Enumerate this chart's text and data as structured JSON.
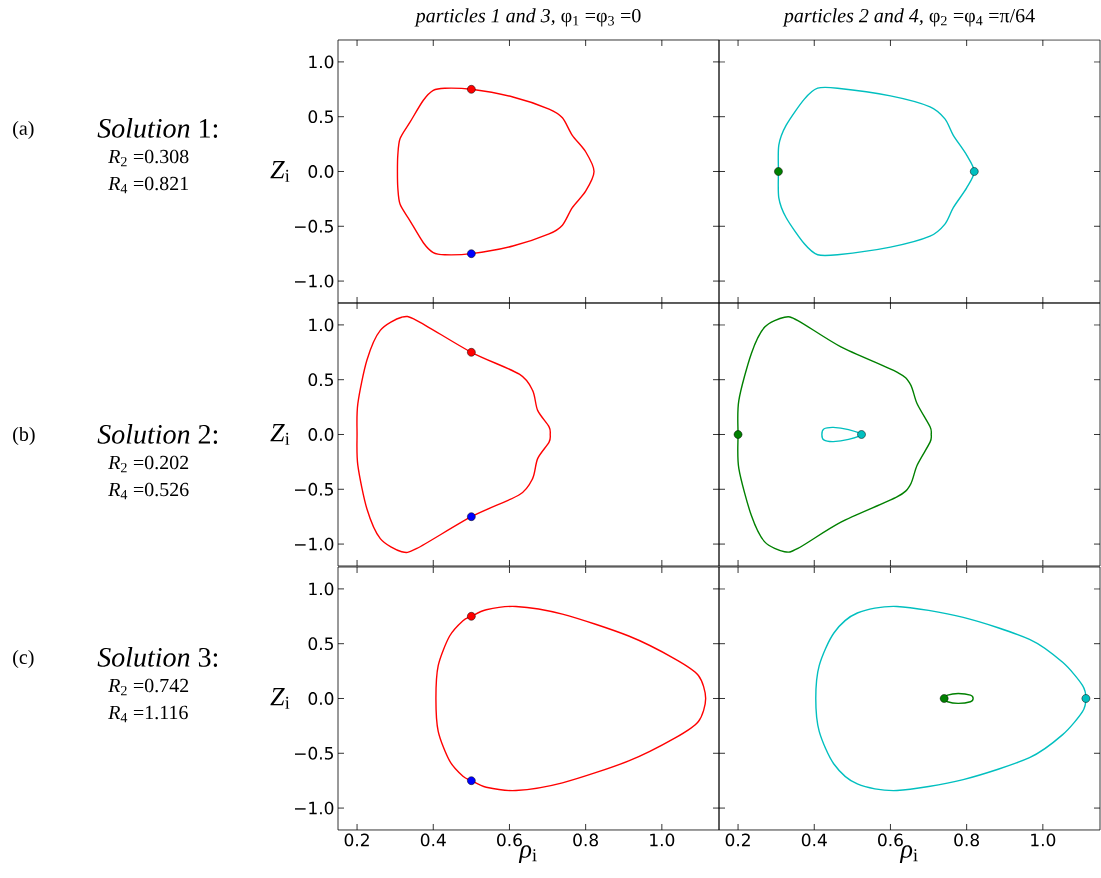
{
  "chart_data": [
    {
      "type": "scatter",
      "title": "*particles 1 and 3,* φ$_{1}$ =φ$_{3}$ =0",
      "ylabel": "*Z*$_{i}$",
      "annotations": [
        "(a)",
        "*Solution* 1:",
        "*R*$_{2}$ =0.308",
        "*R*$_{4}$ =0.821"
      ],
      "xlim": [
        0.15,
        1.15
      ],
      "ylim": [
        -1.2,
        1.2
      ],
      "xticks": [
        0.2,
        0.4,
        0.6,
        0.8,
        1.0
      ],
      "yticks": [
        {
          "value": -1.0,
          "label": "−1.0"
        },
        {
          "value": -0.5,
          "label": "−0.5"
        },
        {
          "value": 0.0,
          "label": "0.0"
        },
        {
          "value": 0.5,
          "label": "0.5"
        },
        {
          "value": 1.0,
          "label": "1.0"
        }
      ],
      "tick_labels": "y",
      "series": [
        {
          "type": "scatter",
          "color": "#ff0000",
          "x": [
            0.5
          ],
          "values": [
            0.75
          ]
        },
        {
          "type": "scatter",
          "color": "#0000ff",
          "x": [
            0.5
          ],
          "values": [
            -0.75
          ]
        }
      ]
    },
    {
      "type": "scatter",
      "title": "*particles 2 and 4,* φ$_{2}$ =φ$_{4}$ =π/64",
      "xlim": [
        0.15,
        1.15
      ],
      "ylim": [
        -1.2,
        1.2
      ],
      "xticks": [
        0.2,
        0.4,
        0.6,
        0.8,
        1.0
      ],
      "yticks": [
        -1.0,
        -0.5,
        0.0,
        0.5,
        1.0
      ],
      "tick_labels": false,
      "series": [
        {
          "type": "scatter",
          "color": "#008000",
          "x": [
            0.306
          ],
          "values": [
            0
          ]
        },
        {
          "type": "scatter",
          "color": "#00bfbf",
          "x": [
            0.82
          ],
          "values": [
            0
          ]
        }
      ]
    },
    {
      "type": "scatter",
      "ylabel": "*Z*$_{i}$",
      "annotations": [
        "(b)",
        "*Solution* 2:",
        "*R*$_{2}$ =0.202",
        "*R*$_{4}$ =0.526"
      ],
      "xlim": [
        0.15,
        1.15
      ],
      "ylim": [
        -1.2,
        1.2
      ],
      "xticks": [
        0.2,
        0.4,
        0.6,
        0.8,
        1.0
      ],
      "yticks": [
        {
          "value": -1.0,
          "label": "−1.0"
        },
        {
          "value": -0.5,
          "label": "−0.5"
        },
        {
          "value": 0.0,
          "label": "0.0"
        },
        {
          "value": 0.5,
          "label": "0.5"
        },
        {
          "value": 1.0,
          "label": "1.0"
        }
      ],
      "tick_labels": "y",
      "series": [
        {
          "type": "scatter",
          "color": "#ff0000",
          "x": [
            0.5
          ],
          "values": [
            0.75
          ]
        },
        {
          "type": "scatter",
          "color": "#0000ff",
          "x": [
            0.5
          ],
          "values": [
            -0.75
          ]
        }
      ]
    },
    {
      "type": "scatter",
      "xlim": [
        0.15,
        1.15
      ],
      "ylim": [
        -1.2,
        1.2
      ],
      "xticks": [
        0.2,
        0.4,
        0.6,
        0.8,
        1.0
      ],
      "yticks": [
        -1.0,
        -0.5,
        0.0,
        0.5,
        1.0
      ],
      "tick_labels": false,
      "series": [
        {
          "type": "scatter",
          "color": "#008000",
          "x": [
            0.2
          ],
          "values": [
            0
          ]
        },
        {
          "type": "scatter",
          "color": "#00bfbf",
          "x": [
            0.524
          ],
          "values": [
            0
          ]
        }
      ]
    },
    {
      "type": "scatter",
      "xlabel": "*ρ*$_{i}$",
      "ylabel": "*Z*$_{i}$",
      "annotations": [
        "(c)",
        "*Solution* 3:",
        "*R*$_{2}$ =0.742",
        "*R*$_{4}$ =1.116"
      ],
      "xlim": [
        0.15,
        1.15
      ],
      "ylim": [
        -1.2,
        1.2
      ],
      "xticks": [
        {
          "value": 0.2,
          "label": "0.2"
        },
        {
          "value": 0.4,
          "label": "0.4"
        },
        {
          "value": 0.6,
          "label": "0.6"
        },
        {
          "value": 0.8,
          "label": "0.8"
        },
        {
          "value": 1.0,
          "label": "1.0"
        }
      ],
      "yticks": [
        {
          "value": -1.0,
          "label": "−1.0"
        },
        {
          "value": -0.5,
          "label": "−0.5"
        },
        {
          "value": 0.0,
          "label": "0.0"
        },
        {
          "value": 0.5,
          "label": "0.5"
        },
        {
          "value": 1.0,
          "label": "1.0"
        }
      ],
      "series": [
        {
          "type": "scatter",
          "color": "#ff0000",
          "x": [
            0.5
          ],
          "values": [
            0.75
          ]
        },
        {
          "type": "scatter",
          "color": "#0000ff",
          "x": [
            0.5
          ],
          "values": [
            -0.75
          ]
        }
      ]
    },
    {
      "type": "scatter",
      "xlabel": "*ρ*$_{i}$",
      "xlim": [
        0.15,
        1.15
      ],
      "ylim": [
        -1.2,
        1.2
      ],
      "xticks": [
        {
          "value": 0.2,
          "label": "0.2"
        },
        {
          "value": 0.4,
          "label": "0.4"
        },
        {
          "value": 0.6,
          "label": "0.6"
        },
        {
          "value": 0.8,
          "label": "0.8"
        },
        {
          "value": 1.0,
          "label": "1.0"
        }
      ],
      "yticks": [
        -1.0,
        -0.5,
        0.0,
        0.5,
        1.0
      ],
      "tick_labels": "x",
      "series": [
        {
          "type": "scatter",
          "color": "#008000",
          "x": [
            0.741
          ],
          "values": [
            0
          ]
        },
        {
          "type": "scatter",
          "color": "#00bfbf",
          "x": [
            1.113
          ],
          "values": [
            0
          ]
        }
      ]
    }
  ]
}
